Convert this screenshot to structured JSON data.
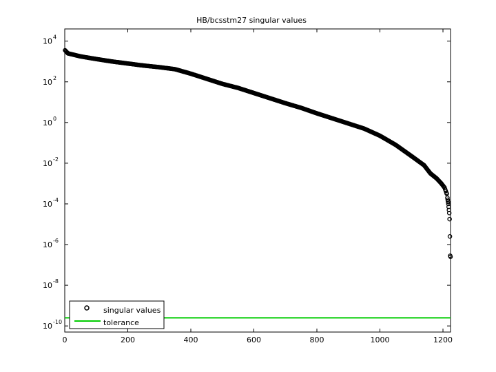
{
  "chart_data": {
    "type": "scatter",
    "title": "HB/bcsstm27 singular values",
    "xlabel": "",
    "ylabel": "",
    "xlim": [
      0,
      1224
    ],
    "ylim_log10": [
      -10.3,
      4.6
    ],
    "y_scale": "log",
    "x_ticks": [
      0,
      200,
      400,
      600,
      800,
      1000,
      1200
    ],
    "y_ticks": [
      {
        "base": "10",
        "exp": "4",
        "value": 10000
      },
      {
        "base": "10",
        "exp": "2",
        "value": 100
      },
      {
        "base": "10",
        "exp": "0",
        "value": 1
      },
      {
        "base": "10",
        "exp": "-2",
        "value": 0.01
      },
      {
        "base": "10",
        "exp": "-4",
        "value": 0.0001
      },
      {
        "base": "10",
        "exp": "-6",
        "value": 1e-06
      },
      {
        "base": "10",
        "exp": "-8",
        "value": 1e-08
      },
      {
        "base": "10",
        "exp": "-10",
        "value": 1e-10
      }
    ],
    "grid": false,
    "legend_position": "bottom-left",
    "series": [
      {
        "name": "singular values",
        "marker": "circle-open",
        "color": "#000000",
        "x_y_log10_anchors": [
          [
            1,
            3.55
          ],
          [
            10,
            3.4
          ],
          [
            50,
            3.25
          ],
          [
            100,
            3.12
          ],
          [
            150,
            3.0
          ],
          [
            200,
            2.9
          ],
          [
            250,
            2.8
          ],
          [
            300,
            2.72
          ],
          [
            350,
            2.62
          ],
          [
            400,
            2.4
          ],
          [
            450,
            2.15
          ],
          [
            500,
            1.9
          ],
          [
            550,
            1.7
          ],
          [
            600,
            1.45
          ],
          [
            650,
            1.2
          ],
          [
            700,
            0.95
          ],
          [
            750,
            0.72
          ],
          [
            800,
            0.45
          ],
          [
            850,
            0.2
          ],
          [
            900,
            -0.05
          ],
          [
            950,
            -0.3
          ],
          [
            1000,
            -0.65
          ],
          [
            1050,
            -1.1
          ],
          [
            1100,
            -1.65
          ],
          [
            1140,
            -2.1
          ],
          [
            1160,
            -2.5
          ],
          [
            1180,
            -2.75
          ],
          [
            1195,
            -3.0
          ],
          [
            1205,
            -3.2
          ],
          [
            1212,
            -3.5
          ],
          [
            1215,
            -3.8
          ]
        ],
        "tail_points": [
          [
            1216,
            -3.9
          ],
          [
            1217,
            -4.0
          ],
          [
            1218,
            -4.15
          ],
          [
            1219,
            -4.3
          ],
          [
            1220,
            -4.45
          ],
          [
            1221,
            -4.75
          ],
          [
            1222,
            -5.6
          ],
          [
            1223,
            -6.55
          ],
          [
            1224,
            -6.6
          ]
        ]
      },
      {
        "name": "tolerance",
        "marker": "line",
        "color": "#00cc00",
        "y_value": 2.5e-10
      }
    ]
  }
}
